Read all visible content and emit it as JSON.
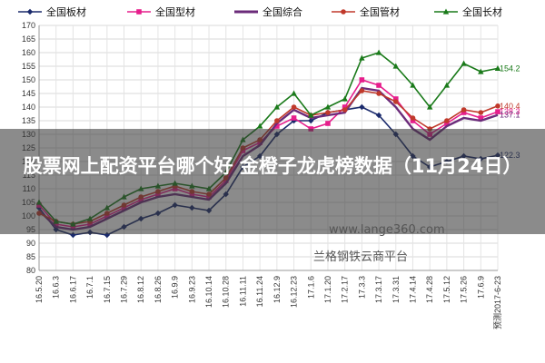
{
  "chart_data": {
    "type": "line",
    "title": "",
    "xlabel": "",
    "ylabel": "",
    "ylim": [
      80,
      170
    ],
    "yticks": [
      80,
      85,
      90,
      95,
      100,
      105,
      110,
      115,
      120,
      125,
      130,
      135,
      140,
      145,
      150,
      155,
      160,
      165,
      170
    ],
    "grid": true,
    "legend_position": "top",
    "x_tick_labels": [
      "16.5.20",
      "16.6.3",
      "16.6.17",
      "16.7.1",
      "16.7.15",
      "16.7.29",
      "16.8.12",
      "16.8.26",
      "16.9.9",
      "16.9.23",
      "16.10.14",
      "16.10.28",
      "16.11.11",
      "16.11.24",
      "16.12.9",
      "16.12.23",
      "17.1.6",
      "17.1.20",
      "17.2.17",
      "17.3.3",
      "17.3.17",
      "17.3.31",
      "17.4.14",
      "17.4.28",
      "17.5.12",
      "17.5.26",
      "17.6.9",
      "预测2017-6-23"
    ],
    "end_labels": [
      {
        "text": "154.2",
        "y": 154.2,
        "color": "#1a7a1a"
      },
      {
        "text": "140.4",
        "y": 140.4,
        "color": "#c0392b"
      },
      {
        "text": "138.3",
        "y": 138.3,
        "color": "#e61e8c"
      },
      {
        "text": "137.1",
        "y": 137.1,
        "color": "#6b2b7a"
      },
      {
        "text": "122.3",
        "y": 122.3,
        "color": "#1a2a6c"
      }
    ],
    "series": [
      {
        "name": "全国板材",
        "color": "#1a2a6c",
        "marker": "diamond",
        "values": [
          103,
          95,
          93,
          94,
          93,
          96,
          99,
          101,
          104,
          103,
          102,
          108,
          118,
          122,
          130,
          135,
          135,
          138,
          139,
          140,
          137,
          130,
          122,
          118,
          120,
          122,
          121,
          122.3
        ]
      },
      {
        "name": "全国型材",
        "color": "#e61e8c",
        "marker": "square",
        "values": [
          104,
          97,
          96,
          97,
          100,
          103,
          106,
          108,
          110,
          108,
          107,
          113,
          124,
          127,
          133,
          136,
          132,
          134,
          140,
          150,
          148,
          143,
          135,
          130,
          134,
          138,
          136,
          138.3
        ]
      },
      {
        "name": "全国综合",
        "color": "#6b2b7a",
        "marker": "line",
        "values": [
          102,
          96,
          95,
          96,
          99,
          102,
          105,
          107,
          108,
          107,
          106,
          112,
          122,
          126,
          134,
          139,
          136,
          137,
          138,
          147,
          146,
          140,
          132,
          128,
          133,
          136,
          135,
          137.1
        ]
      },
      {
        "name": "全国管材",
        "color": "#c0392b",
        "marker": "circle",
        "values": [
          101,
          98,
          97,
          98,
          101,
          104,
          107,
          109,
          111,
          109,
          108,
          114,
          125,
          128,
          135,
          140,
          137,
          138,
          139,
          146,
          145,
          142,
          136,
          132,
          135,
          139,
          138,
          140.4
        ]
      },
      {
        "name": "全国长材",
        "color": "#1a7a1a",
        "marker": "triangle",
        "values": [
          105,
          98,
          97,
          99,
          103,
          107,
          110,
          111,
          112,
          111,
          110,
          116,
          128,
          133,
          140,
          145,
          137,
          140,
          143,
          158,
          160,
          155,
          148,
          140,
          148,
          156,
          153,
          154.2
        ]
      }
    ]
  },
  "overlay": {
    "headline": "股票网上配资平台哪个好 金橙子龙虎榜数据（11月24日）",
    "watermark_url": "www.lange360.com",
    "watermark_name": "兰格钢铁云商平台"
  }
}
